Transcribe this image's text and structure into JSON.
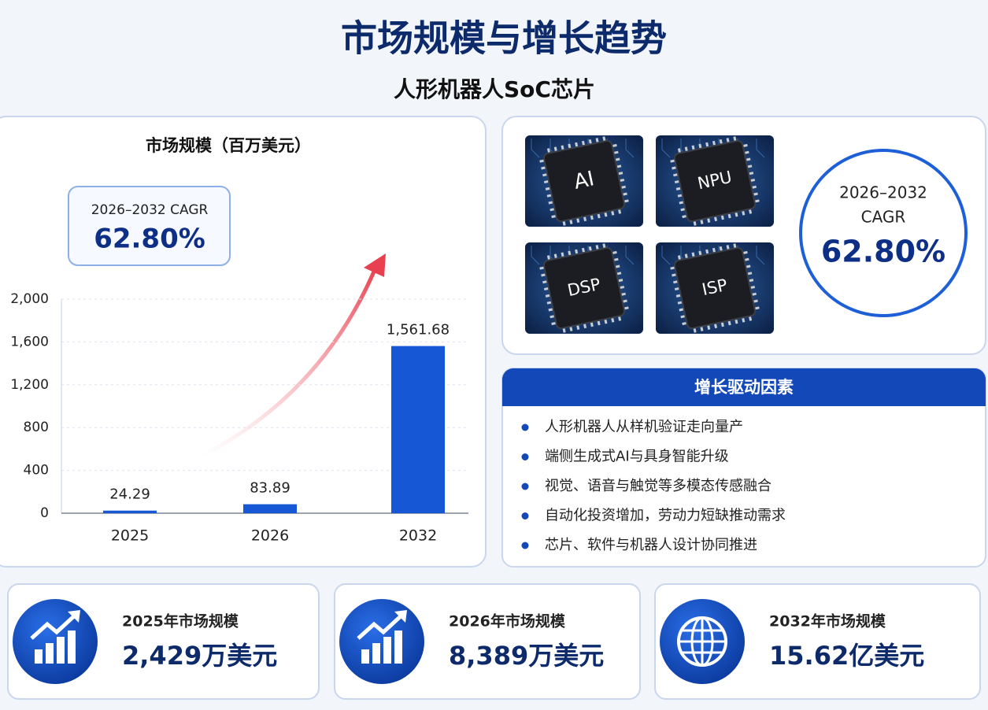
{
  "header": {
    "title": "市场规模与增长趋势",
    "subtitle": "人形机器人SoC芯片"
  },
  "chart_data": {
    "type": "bar",
    "title": "市场规模（百万美元）",
    "categories": [
      "2025",
      "2026",
      "2032"
    ],
    "values": [
      24.29,
      83.89,
      1561.68
    ],
    "value_labels": [
      "24.29",
      "83.89",
      "1,561.68"
    ],
    "color": "#1557d4",
    "ylim": [
      0,
      2000
    ],
    "yticks": [
      0,
      400,
      800,
      {
        "value": 1200,
        "label": "1,200"
      },
      {
        "value": 1600,
        "label": "1,600"
      },
      {
        "value": 2000,
        "label": "2,000"
      }
    ],
    "grid": true
  },
  "cagr_box": {
    "label": "2026–2032 CAGR",
    "value": "62.80%"
  },
  "chips": [
    "AI",
    "NPU",
    "DSP",
    "ISP"
  ],
  "cagr_circle": {
    "period": "2026–2032",
    "metric": "CAGR",
    "value": "62.80%"
  },
  "drivers": {
    "title": "增长驱动因素",
    "items": [
      "人形机器人从样机验证走向量产",
      "端侧生成式AI与具身智能升级",
      "视觉、语音与触觉等多模态传感融合",
      "自动化投资增加，劳动力短缺推动需求",
      "芯片、软件与机器人设计协同推进"
    ]
  },
  "stats": [
    {
      "label": "2025年市场规模",
      "value": "2,429万美元"
    },
    {
      "label": "2026年市场规模",
      "value": "8,389万美元"
    },
    {
      "label": "2032年市场规模",
      "value": "15.62亿美元"
    }
  ]
}
